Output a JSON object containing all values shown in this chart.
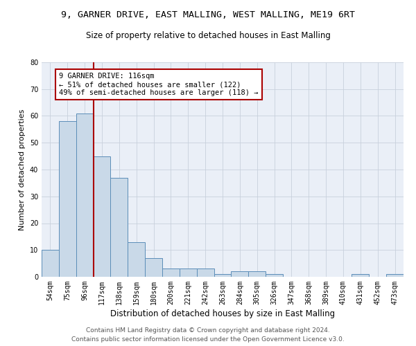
{
  "title1": "9, GARNER DRIVE, EAST MALLING, WEST MALLING, ME19 6RT",
  "title2": "Size of property relative to detached houses in East Malling",
  "xlabel": "Distribution of detached houses by size in East Malling",
  "ylabel": "Number of detached properties",
  "categories": [
    "54sqm",
    "75sqm",
    "96sqm",
    "117sqm",
    "138sqm",
    "159sqm",
    "180sqm",
    "200sqm",
    "221sqm",
    "242sqm",
    "263sqm",
    "284sqm",
    "305sqm",
    "326sqm",
    "347sqm",
    "368sqm",
    "389sqm",
    "410sqm",
    "431sqm",
    "452sqm",
    "473sqm"
  ],
  "values": [
    10,
    58,
    61,
    45,
    37,
    13,
    7,
    3,
    3,
    3,
    1,
    2,
    2,
    1,
    0,
    0,
    0,
    0,
    1,
    0,
    1
  ],
  "bar_color": "#c9d9e8",
  "bar_edge_color": "#5b8db8",
  "vline_x": 2.5,
  "vline_color": "#aa0000",
  "annotation_text": "9 GARNER DRIVE: 116sqm\n← 51% of detached houses are smaller (122)\n49% of semi-detached houses are larger (118) →",
  "annotation_fontsize": 7.5,
  "annotation_box_color": "#ffffff",
  "annotation_box_edgecolor": "#aa0000",
  "ylim": [
    0,
    80
  ],
  "yticks": [
    0,
    10,
    20,
    30,
    40,
    50,
    60,
    70,
    80
  ],
  "grid_color": "#c8d0dc",
  "bg_color": "#eaeff7",
  "footer1": "Contains HM Land Registry data © Crown copyright and database right 2024.",
  "footer2": "Contains public sector information licensed under the Open Government Licence v3.0.",
  "title_fontsize": 9.5,
  "subtitle_fontsize": 8.5,
  "xlabel_fontsize": 8.5,
  "ylabel_fontsize": 8,
  "tick_fontsize": 7,
  "footer_fontsize": 6.5
}
